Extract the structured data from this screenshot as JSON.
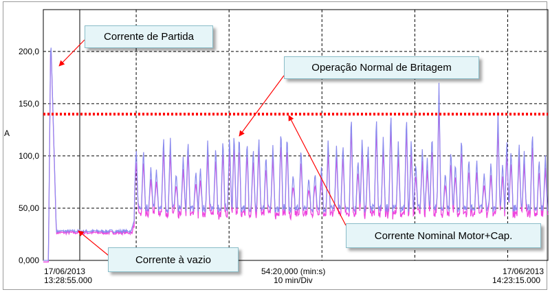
{
  "chart_data": {
    "type": "line",
    "ylabel": "A",
    "ylim": [
      0,
      240
    ],
    "yticks": [
      "0,000",
      "50,00",
      "100,0",
      "150,0",
      "200,0"
    ],
    "ytick_values": [
      0,
      50,
      100,
      150,
      200
    ],
    "grid": true,
    "x_start": {
      "date": "17/06/2013",
      "time": "13:28:55.000"
    },
    "x_end": {
      "date": "17/06/2013",
      "time": "14:23:15.000"
    },
    "x_center": {
      "span": "54:20,000 (min:s)",
      "division": "10 min/Div"
    },
    "nominal_line": {
      "value": 140,
      "color": "#ff0000"
    },
    "colors": {
      "upper_trace": "#8a8aee",
      "lower_trace": "#ee44dd"
    },
    "events": {
      "start_peak": {
        "time_min": 0.8,
        "value": 216
      },
      "no_load_current": {
        "time_min_range": [
          0.8,
          9.5
        ],
        "value": 28
      },
      "normal_operation": {
        "time_min_range": [
          10,
          54.33
        ],
        "baseline": 50,
        "peak_max": 170
      }
    }
  },
  "callouts": {
    "partida": "Corrente de Partida",
    "britagem": "Operação Normal de Britagem",
    "vazio": "Corrente à vazio",
    "nominal": "Corrente Nominal Motor+Cap."
  }
}
